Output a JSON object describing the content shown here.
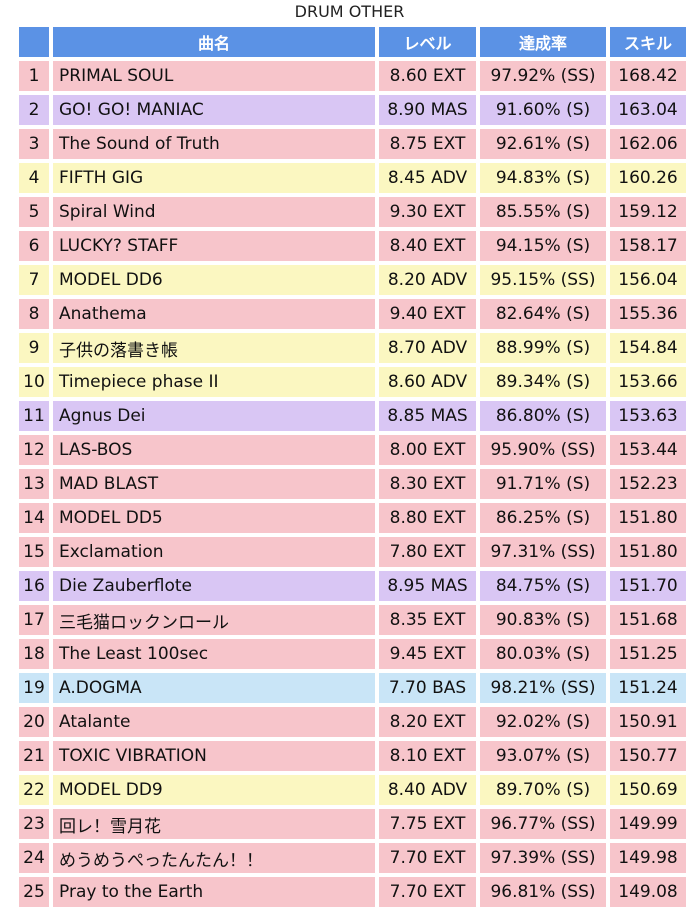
{
  "page": {
    "title": "DRUM OTHER"
  },
  "table": {
    "headers": {
      "num": "",
      "name": "曲名",
      "level": "レベル",
      "rate": "達成率",
      "skill": "スキル"
    },
    "row_colors": {
      "EXT": "#f7c5cb",
      "MAS": "#d9c6f4",
      "ADV": "#fbf7c1",
      "BAS": "#c9e5f7",
      "header": "#5b92e5"
    },
    "rows": [
      {
        "num": "1",
        "name": "PRIMAL SOUL",
        "level": "8.60 EXT",
        "diff": "EXT",
        "rate": "97.92% (SS)",
        "skill": "168.42"
      },
      {
        "num": "2",
        "name": "GO! GO! MANIAC",
        "level": "8.90 MAS",
        "diff": "MAS",
        "rate": "91.60% (S)",
        "skill": "163.04"
      },
      {
        "num": "3",
        "name": "The Sound of Truth",
        "level": "8.75 EXT",
        "diff": "EXT",
        "rate": "92.61% (S)",
        "skill": "162.06"
      },
      {
        "num": "4",
        "name": "FIFTH GIG",
        "level": "8.45 ADV",
        "diff": "ADV",
        "rate": "94.83% (S)",
        "skill": "160.26"
      },
      {
        "num": "5",
        "name": "Spiral Wind",
        "level": "9.30 EXT",
        "diff": "EXT",
        "rate": "85.55% (S)",
        "skill": "159.12"
      },
      {
        "num": "6",
        "name": "LUCKY? STAFF",
        "level": "8.40 EXT",
        "diff": "EXT",
        "rate": "94.15% (S)",
        "skill": "158.17"
      },
      {
        "num": "7",
        "name": "MODEL DD6",
        "level": "8.20 ADV",
        "diff": "ADV",
        "rate": "95.15% (SS)",
        "skill": "156.04"
      },
      {
        "num": "8",
        "name": "Anathema",
        "level": "9.40 EXT",
        "diff": "EXT",
        "rate": "82.64% (S)",
        "skill": "155.36"
      },
      {
        "num": "9",
        "name": "子供の落書き帳",
        "level": "8.70 ADV",
        "diff": "ADV",
        "rate": "88.99% (S)",
        "skill": "154.84"
      },
      {
        "num": "10",
        "name": "Timepiece phase II",
        "level": "8.60 ADV",
        "diff": "ADV",
        "rate": "89.34% (S)",
        "skill": "153.66"
      },
      {
        "num": "11",
        "name": "Agnus Dei",
        "level": "8.85 MAS",
        "diff": "MAS",
        "rate": "86.80% (S)",
        "skill": "153.63"
      },
      {
        "num": "12",
        "name": "LAS-BOS",
        "level": "8.00 EXT",
        "diff": "EXT",
        "rate": "95.90% (SS)",
        "skill": "153.44"
      },
      {
        "num": "13",
        "name": "MAD BLAST",
        "level": "8.30 EXT",
        "diff": "EXT",
        "rate": "91.71% (S)",
        "skill": "152.23"
      },
      {
        "num": "14",
        "name": "MODEL DD5",
        "level": "8.80 EXT",
        "diff": "EXT",
        "rate": "86.25% (S)",
        "skill": "151.80"
      },
      {
        "num": "15",
        "name": "Exclamation",
        "level": "7.80 EXT",
        "diff": "EXT",
        "rate": "97.31% (SS)",
        "skill": "151.80"
      },
      {
        "num": "16",
        "name": "Die Zauberflote",
        "level": "8.95 MAS",
        "diff": "MAS",
        "rate": "84.75% (S)",
        "skill": "151.70"
      },
      {
        "num": "17",
        "name": "三毛猫ロックンロール",
        "level": "8.35 EXT",
        "diff": "EXT",
        "rate": "90.83% (S)",
        "skill": "151.68"
      },
      {
        "num": "18",
        "name": "The Least 100sec",
        "level": "9.45 EXT",
        "diff": "EXT",
        "rate": "80.03% (S)",
        "skill": "151.25"
      },
      {
        "num": "19",
        "name": "A.DOGMA",
        "level": "7.70 BAS",
        "diff": "BAS",
        "rate": "98.21% (SS)",
        "skill": "151.24"
      },
      {
        "num": "20",
        "name": "Atalante",
        "level": "8.20 EXT",
        "diff": "EXT",
        "rate": "92.02% (S)",
        "skill": "150.91"
      },
      {
        "num": "21",
        "name": "TOXIC VIBRATION",
        "level": "8.10 EXT",
        "diff": "EXT",
        "rate": "93.07% (S)",
        "skill": "150.77"
      },
      {
        "num": "22",
        "name": "MODEL DD9",
        "level": "8.40 ADV",
        "diff": "ADV",
        "rate": "89.70% (S)",
        "skill": "150.69"
      },
      {
        "num": "23",
        "name": "回レ！雪月花",
        "level": "7.75 EXT",
        "diff": "EXT",
        "rate": "96.77% (SS)",
        "skill": "149.99"
      },
      {
        "num": "24",
        "name": "めうめうぺったんたん！！",
        "level": "7.70 EXT",
        "diff": "EXT",
        "rate": "97.39% (SS)",
        "skill": "149.98"
      },
      {
        "num": "25",
        "name": "Pray to the Earth",
        "level": "7.70 EXT",
        "diff": "EXT",
        "rate": "96.81% (SS)",
        "skill": "149.08"
      }
    ]
  }
}
